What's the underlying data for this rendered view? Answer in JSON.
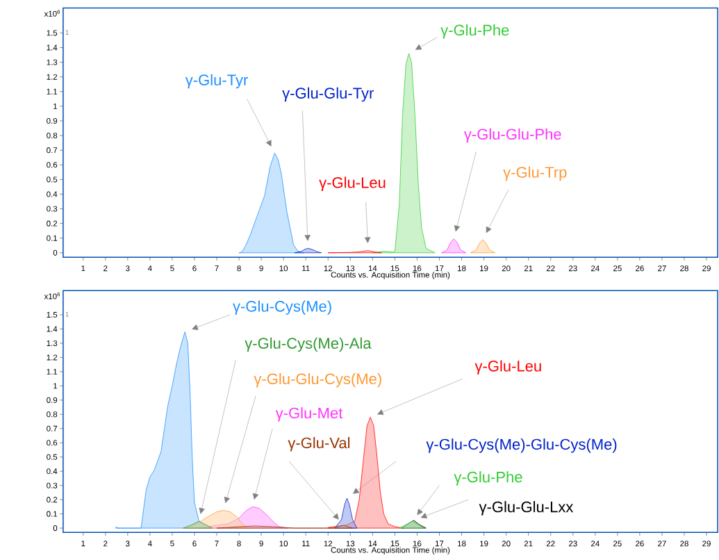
{
  "chart_data": [
    {
      "type": "area",
      "xlabel": "Counts vs. Acquisition Time (min)",
      "ylabel": "x10$^{6}$",
      "annotations": [
        "1"
      ],
      "xlim": [
        0.1,
        29.5
      ],
      "ylim": [
        -0.03,
        1.67
      ],
      "xticks": [
        1,
        2,
        3,
        4,
        5,
        6,
        7,
        8,
        9,
        10,
        11,
        12,
        13,
        14,
        15,
        16,
        17,
        18,
        19,
        20,
        21,
        22,
        23,
        24,
        25,
        26,
        27,
        28,
        29
      ],
      "yticks": [
        0,
        0.1,
        0.2,
        0.3,
        0.4,
        0.5,
        0.6,
        0.7,
        0.8,
        0.9,
        1,
        1.1,
        1.2,
        1.3,
        1.4,
        1.5
      ],
      "series": [
        {
          "name": "γ-Glu-Tyr",
          "color": "#1e90ff",
          "x": [
            8.0,
            8.13,
            8.3,
            8.5,
            8.8,
            9.15,
            9.4,
            9.6,
            9.75,
            9.9,
            10.15,
            10.45,
            10.65,
            10.9
          ],
          "values": [
            0,
            0.005,
            0.05,
            0.12,
            0.245,
            0.39,
            0.59,
            0.68,
            0.64,
            0.54,
            0.28,
            0.055,
            0.01,
            0
          ]
        },
        {
          "name": "γ-Glu-Glu-Tyr",
          "color": "#0022cc",
          "x": [
            10.5,
            10.8,
            11.0,
            11.1,
            11.25,
            11.5,
            11.7
          ],
          "values": [
            0,
            0.01,
            0.027,
            0.03,
            0.025,
            0.008,
            0
          ]
        },
        {
          "name": "γ-Glu-Leu",
          "color": "#ff0000",
          "x": [
            12.0,
            13.0,
            13.4,
            13.8,
            14.1,
            14.4
          ],
          "values": [
            0,
            0.003,
            0.006,
            0.015,
            0.006,
            0
          ]
        },
        {
          "name": "γ-Glu-Phe",
          "color": "#33cc33",
          "x": [
            14.0,
            14.5,
            14.9,
            15.0,
            15.2,
            15.35,
            15.5,
            15.63,
            15.75,
            15.9,
            16.05,
            16.2,
            16.4,
            16.8
          ],
          "values": [
            0,
            0.01,
            0.005,
            0.01,
            0.33,
            0.95,
            1.29,
            1.36,
            1.3,
            0.95,
            0.48,
            0.17,
            0.03,
            0
          ]
        },
        {
          "name": "γ-Glu-Glu-Phe",
          "color": "#ff33ff",
          "x": [
            17.1,
            17.35,
            17.5,
            17.65,
            17.8,
            17.95,
            18.2
          ],
          "values": [
            0,
            0.02,
            0.07,
            0.095,
            0.07,
            0.02,
            0
          ]
        },
        {
          "name": "γ-Glu-Trp",
          "color": "#ff9933",
          "x": [
            18.4,
            18.65,
            18.8,
            18.95,
            19.1,
            19.25,
            19.5
          ],
          "values": [
            0,
            0.02,
            0.065,
            0.09,
            0.065,
            0.02,
            0
          ]
        }
      ]
    },
    {
      "type": "area",
      "xlabel": "Counts vs. Acquisition Time (min)",
      "ylabel": "x10$^{6}$",
      "annotations": [
        "1"
      ],
      "xlim": [
        0.1,
        29.5
      ],
      "ylim": [
        -0.03,
        1.67
      ],
      "xticks": [
        1,
        2,
        3,
        4,
        5,
        6,
        7,
        8,
        9,
        10,
        11,
        12,
        13,
        14,
        15,
        16,
        17,
        18,
        19,
        20,
        21,
        22,
        23,
        24,
        25,
        26,
        27,
        28,
        29
      ],
      "yticks": [
        0,
        0.1,
        0.2,
        0.3,
        0.4,
        0.5,
        0.6,
        0.7,
        0.8,
        0.9,
        1,
        1.1,
        1.2,
        1.3,
        1.4,
        1.5
      ],
      "series": [
        {
          "name": "γ-Glu-Cys(Me)",
          "color": "#1e90ff",
          "x": [
            2.45,
            2.5,
            2.55,
            3.6,
            3.83,
            4.0,
            4.2,
            4.5,
            4.8,
            5.0,
            5.2,
            5.4,
            5.57,
            5.7,
            5.8,
            5.9,
            6.0,
            6.2,
            6.5,
            6.8
          ],
          "values": [
            0,
            0.01,
            0,
            0,
            0.27,
            0.36,
            0.41,
            0.54,
            0.86,
            1.0,
            1.16,
            1.29,
            1.38,
            1.3,
            0.96,
            0.49,
            0.18,
            0.05,
            0.01,
            0
          ]
        },
        {
          "name": "γ-Glu-Cys(Me)-Ala",
          "color": "#339933",
          "x": [
            5.5,
            5.9,
            6.2,
            6.5,
            6.8
          ],
          "values": [
            0,
            0.025,
            0.048,
            0.025,
            0
          ]
        },
        {
          "name": "γ-Glu-Glu-Cys(Me)",
          "color": "#ff9933",
          "x": [
            5.5,
            5.8,
            6.3,
            6.6,
            7.0,
            7.3,
            7.6,
            7.9,
            8.1,
            8.3,
            8.5
          ],
          "values": [
            0,
            0.01,
            0.05,
            0.08,
            0.115,
            0.125,
            0.115,
            0.08,
            0.04,
            0.005,
            0
          ]
        },
        {
          "name": "γ-Glu-Met",
          "color": "#ff33ff",
          "x": [
            6.2,
            6.6,
            7.5,
            8.0,
            8.3,
            8.6,
            8.9,
            9.2,
            9.5,
            9.8,
            10.2
          ],
          "values": [
            0,
            0.01,
            0.03,
            0.07,
            0.12,
            0.15,
            0.14,
            0.1,
            0.05,
            0.01,
            0
          ]
        },
        {
          "name": "γ-Glu-Val",
          "color": "#993300",
          "x": [
            7.0,
            8.0,
            8.7,
            9.5,
            10.2,
            10.5,
            12.2,
            12.7,
            13.1
          ],
          "values": [
            0,
            0.01,
            0.015,
            0.01,
            0.003,
            0,
            0,
            0.02,
            0
          ]
        },
        {
          "name": "γ-Glu-Cys(Me)-Glu-Cys(Me)",
          "color": "#0022cc",
          "x": [
            12.3,
            12.6,
            12.75,
            12.85,
            12.95,
            13.1,
            13.3
          ],
          "values": [
            0,
            0.06,
            0.17,
            0.21,
            0.17,
            0.06,
            0
          ]
        },
        {
          "name": "γ-Glu-Leu",
          "color": "#ff0000",
          "x": [
            12.0,
            12.8,
            13.2,
            13.4,
            13.6,
            13.75,
            13.9,
            14.05,
            14.2,
            14.35,
            14.5,
            14.7,
            15.0,
            15.4
          ],
          "values": [
            0.005,
            0.02,
            0.05,
            0.2,
            0.5,
            0.72,
            0.78,
            0.72,
            0.5,
            0.25,
            0.1,
            0.03,
            0.01,
            0
          ]
        },
        {
          "name": "γ-Glu-Phe",
          "color": "#33cc33",
          "x": [
            15.2,
            15.5,
            15.8,
            16.1,
            16.3
          ],
          "values": [
            0,
            0.025,
            0.05,
            0.02,
            0
          ]
        },
        {
          "name": "γ-Glu-Glu-Lxx",
          "color": "#000000",
          "x": [
            15.3,
            15.55,
            15.85,
            16.1,
            16.4
          ],
          "values": [
            0,
            0.025,
            0.055,
            0.025,
            0
          ]
        }
      ]
    }
  ]
}
